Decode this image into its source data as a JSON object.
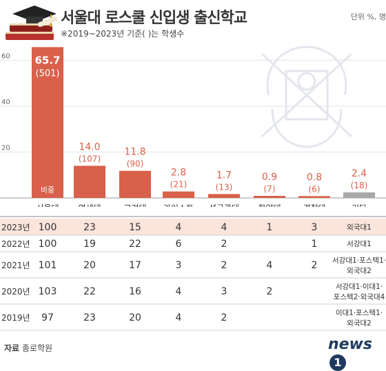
{
  "title": "서울대 로스쿨 신입생 출신학교",
  "subtitle": "※2019~2023년 기준( )는 학생수",
  "unit": "단위 %, 명",
  "source": {
    "label": "자료",
    "value": "종로학원"
  },
  "logo": {
    "text": "news",
    "badge": "1"
  },
  "chart_data": {
    "type": "bar",
    "categories": [
      "서울대",
      "연세대",
      "고려대",
      "카이스트",
      "성균관대",
      "한양대",
      "경찰대",
      "기타"
    ],
    "values": [
      65.7,
      14.0,
      11.8,
      2.8,
      1.7,
      0.9,
      0.8,
      2.4
    ],
    "value_labels": [
      "65.7",
      "14.0",
      "11.8",
      "2.8",
      "1.7",
      "0.9",
      "0.8",
      "2.4"
    ],
    "counts": [
      "(501)",
      "(107)",
      "(90)",
      "(21)",
      "(13)",
      "(7)",
      "(6)",
      "(18)"
    ],
    "bar_inner_label": "비중",
    "yticks": [
      20,
      40,
      60
    ],
    "ylim": [
      0,
      70
    ],
    "colors": {
      "bar": "#d9604a",
      "other_bar": "#a8a8a8",
      "highlight_row": "#fbe4dc"
    }
  },
  "table": {
    "rows": [
      {
        "year": "2023년",
        "cells": [
          "100",
          "23",
          "15",
          "4",
          "4",
          "1",
          "3"
        ],
        "other": [
          "외국대1"
        ],
        "highlight": true
      },
      {
        "year": "2022년",
        "cells": [
          "100",
          "19",
          "22",
          "6",
          "2",
          "",
          "1"
        ],
        "other": [
          "서강대1"
        ],
        "highlight": false
      },
      {
        "year": "2021년",
        "cells": [
          "101",
          "20",
          "17",
          "3",
          "2",
          "4",
          "2"
        ],
        "other": [
          "서강대1·포스텍1·",
          "외국대2"
        ],
        "highlight": false
      },
      {
        "year": "2020년",
        "cells": [
          "103",
          "22",
          "16",
          "4",
          "3",
          "2",
          ""
        ],
        "other": [
          "서강대1·이대1·",
          "포스텍2·외국대4"
        ],
        "highlight": false
      },
      {
        "year": "2019년",
        "cells": [
          "97",
          "23",
          "20",
          "4",
          "2",
          "",
          ""
        ],
        "other": [
          "이대1·포스텍1·",
          "외국대2"
        ],
        "highlight": false
      }
    ]
  }
}
